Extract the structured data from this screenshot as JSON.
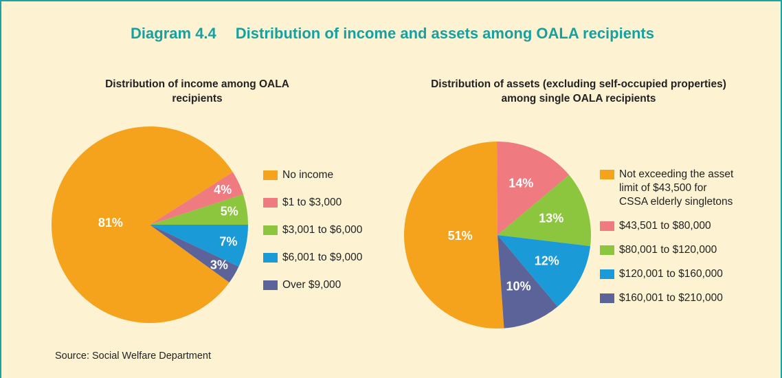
{
  "title_number": "Diagram 4.4",
  "title": "Distribution of income and assets among OALA recipients",
  "source": "Source: Social Welfare Department",
  "chart_data": [
    {
      "type": "pie",
      "title": "Distribution of income among OALA recipients",
      "categories": [
        "No income",
        "$1 to $3,000",
        "$3,001 to $6,000",
        "$6,001 to $9,000",
        "Over $9,000"
      ],
      "values": [
        81,
        4,
        5,
        7,
        3
      ],
      "value_labels": [
        "81%",
        "4%",
        "5%",
        "7%",
        "3%"
      ],
      "colors": [
        "#f5a31d",
        "#ef7a80",
        "#8cc63e",
        "#1a9ad7",
        "#5c6399"
      ]
    },
    {
      "type": "pie",
      "title": "Distribution of assets (excluding self-occupied properties) among single  OALA recipients",
      "categories": [
        "Not exceeding the asset limit of $43,500 for CSSA elderly singletons",
        "$43,501 to $80,000",
        "$80,001 to $120,000",
        "$120,001 to $160,000",
        "$160,001 to $210,000"
      ],
      "values": [
        51,
        14,
        13,
        12,
        10
      ],
      "value_labels": [
        "51%",
        "14%",
        "13%",
        "12%",
        "10%"
      ],
      "colors": [
        "#f5a31d",
        "#ef7a80",
        "#8cc63e",
        "#1a9ad7",
        "#5c6399"
      ]
    }
  ]
}
